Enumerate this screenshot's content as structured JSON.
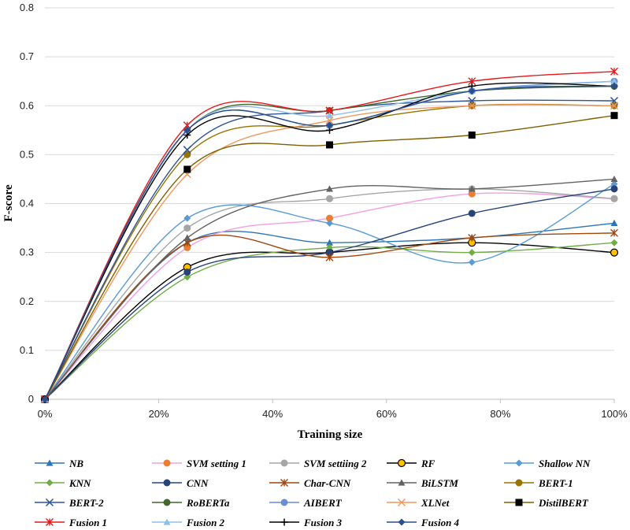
{
  "chart_data": {
    "type": "line",
    "title": "",
    "xlabel": "Training size",
    "ylabel": "F-score",
    "x": [
      0,
      25,
      50,
      75,
      100
    ],
    "xticks": [
      0,
      20,
      40,
      60,
      80,
      100
    ],
    "xtick_labels": [
      "0%",
      "20%",
      "40%",
      "60%",
      "80%",
      "100%"
    ],
    "xlim": [
      0,
      100
    ],
    "ylim": [
      0,
      0.8
    ],
    "yticks": [
      0,
      0.1,
      0.2,
      0.3,
      0.4,
      0.5,
      0.6,
      0.7,
      0.8
    ],
    "ytick_labels": [
      "0",
      "0.1",
      "0.2",
      "0.3",
      "0.4",
      "0.5",
      "0.6",
      "0.7",
      "0.8"
    ],
    "grid": "horizontal",
    "legend_position": "bottom",
    "series": [
      {
        "name": "NB",
        "color": "#2E75B6",
        "marker": "triangle",
        "values": [
          0,
          0.32,
          0.32,
          0.33,
          0.36
        ]
      },
      {
        "name": "SVM setting 1",
        "color": "#ED7D31",
        "line_color": "#F4A0E0",
        "marker": "circle",
        "values": [
          0,
          0.31,
          0.37,
          0.42,
          0.41
        ]
      },
      {
        "name": "SVM settiing 2",
        "color": "#A5A5A5",
        "marker": "circle",
        "values": [
          0,
          0.35,
          0.41,
          0.43,
          0.41
        ]
      },
      {
        "name": "RF",
        "color": "#FFC000",
        "line_color": "#000000",
        "marker": "circle-outline",
        "values": [
          0,
          0.27,
          0.3,
          0.32,
          0.3
        ]
      },
      {
        "name": "Shallow NN",
        "color": "#5B9BD5",
        "marker": "diamond",
        "values": [
          0,
          0.37,
          0.36,
          0.28,
          0.44
        ]
      },
      {
        "name": "KNN",
        "color": "#70AD47",
        "marker": "diamond",
        "values": [
          0,
          0.25,
          0.31,
          0.3,
          0.32
        ]
      },
      {
        "name": "CNN",
        "color": "#264478",
        "marker": "circle",
        "values": [
          0,
          0.26,
          0.3,
          0.38,
          0.43
        ]
      },
      {
        "name": "Char-CNN",
        "color": "#9E480E",
        "marker": "star",
        "values": [
          0,
          0.32,
          0.29,
          0.33,
          0.34
        ]
      },
      {
        "name": "BiLSTM",
        "color": "#636363",
        "marker": "triangle",
        "values": [
          0,
          0.33,
          0.43,
          0.43,
          0.45
        ]
      },
      {
        "name": "BERT-1",
        "color": "#997300",
        "marker": "circle",
        "values": [
          0,
          0.5,
          0.56,
          0.6,
          0.6
        ]
      },
      {
        "name": "BERT-2",
        "color": "#2F5597",
        "marker": "x",
        "values": [
          0,
          0.51,
          0.59,
          0.61,
          0.61
        ]
      },
      {
        "name": "RoBERTa",
        "color": "#43682B",
        "marker": "circle",
        "values": [
          0,
          0.55,
          0.59,
          0.63,
          0.64
        ]
      },
      {
        "name": "AIBERT",
        "color": "#698ED0",
        "marker": "circle",
        "values": [
          0,
          0.55,
          0.56,
          0.63,
          0.65
        ]
      },
      {
        "name": "XLNet",
        "color": "#F1975A",
        "marker": "x",
        "values": [
          0,
          0.46,
          0.57,
          0.6,
          0.6
        ]
      },
      {
        "name": "DistilBERT",
        "color": "#000000",
        "line_color": "#7F6000",
        "marker": "square",
        "values": [
          0,
          0.47,
          0.52,
          0.54,
          0.58
        ]
      },
      {
        "name": "Fusion 1",
        "color": "#E31A1C",
        "marker": "star",
        "values": [
          0,
          0.56,
          0.59,
          0.65,
          0.67
        ]
      },
      {
        "name": "Fusion 2",
        "color": "#8FBFE8",
        "marker": "triangle",
        "values": [
          0,
          0.55,
          0.58,
          0.63,
          0.65
        ]
      },
      {
        "name": "Fusion 3",
        "color": "#000000",
        "marker": "plus",
        "values": [
          0,
          0.54,
          0.55,
          0.64,
          0.64
        ]
      },
      {
        "name": "Fusion 4",
        "color": "#2B4F8C",
        "marker": "diamond",
        "values": [
          0,
          0.55,
          0.56,
          0.63,
          0.64
        ]
      }
    ]
  }
}
